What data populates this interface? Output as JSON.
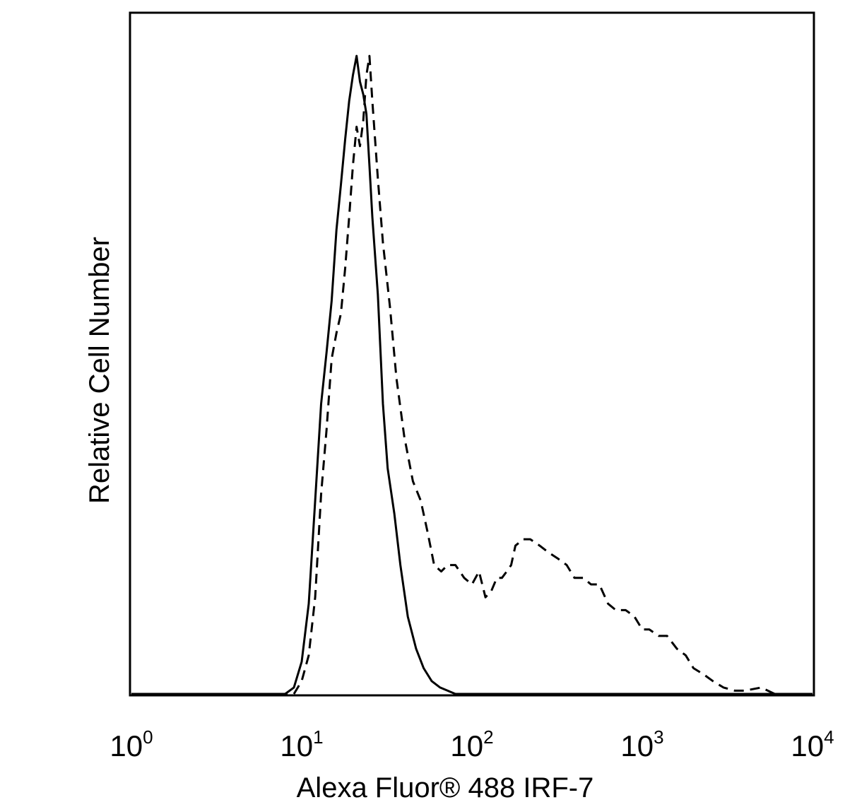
{
  "chart_data": {
    "type": "line",
    "xlabel": "Alexa Fluor® 488 IRF-7",
    "ylabel": "Relative Cell Number",
    "x_scale": "log",
    "xlim": [
      1,
      10000
    ],
    "ylim": [
      0,
      1
    ],
    "grid": false,
    "x_ticks": [
      {
        "base": "10",
        "exp": "0",
        "value": 1
      },
      {
        "base": "10",
        "exp": "1",
        "value": 10
      },
      {
        "base": "10",
        "exp": "2",
        "value": 100
      },
      {
        "base": "10",
        "exp": "3",
        "value": 1000
      },
      {
        "base": "10",
        "exp": "4",
        "value": 10000
      }
    ],
    "series": [
      {
        "style": "solid",
        "x": [
          1,
          8,
          9,
          10,
          11,
          12,
          13,
          14,
          15,
          16,
          17,
          18,
          19,
          20,
          21,
          22,
          23,
          24,
          25,
          26,
          28,
          30,
          32,
          35,
          38,
          42,
          47,
          52,
          58,
          65,
          72,
          80,
          10000
        ],
        "y": [
          0,
          0,
          0.01,
          0.05,
          0.14,
          0.3,
          0.45,
          0.53,
          0.61,
          0.72,
          0.79,
          0.86,
          0.92,
          0.96,
          0.99,
          0.95,
          0.93,
          0.9,
          0.82,
          0.74,
          0.62,
          0.45,
          0.35,
          0.28,
          0.2,
          0.12,
          0.07,
          0.04,
          0.02,
          0.01,
          0.005,
          0,
          0
        ]
      },
      {
        "style": "dashed",
        "x": [
          1,
          9,
          10,
          11,
          12,
          13,
          14,
          15,
          16,
          17,
          18,
          19,
          20,
          21,
          22,
          23,
          24,
          25,
          26,
          28,
          30,
          33,
          36,
          40,
          45,
          50,
          55,
          60,
          66,
          72,
          80,
          90,
          100,
          110,
          120,
          130,
          140,
          150,
          160,
          170,
          180,
          200,
          220,
          250,
          280,
          320,
          360,
          400,
          450,
          500,
          560,
          630,
          700,
          800,
          900,
          1000,
          1100,
          1250,
          1400,
          1600,
          1800,
          2000,
          2300,
          2600,
          3000,
          3500,
          4000,
          5000,
          6000,
          10000
        ],
        "y": [
          0,
          0,
          0.02,
          0.06,
          0.15,
          0.31,
          0.41,
          0.52,
          0.56,
          0.59,
          0.66,
          0.74,
          0.82,
          0.88,
          0.85,
          0.89,
          0.96,
          0.99,
          0.92,
          0.8,
          0.7,
          0.6,
          0.49,
          0.4,
          0.33,
          0.3,
          0.25,
          0.2,
          0.19,
          0.2,
          0.2,
          0.18,
          0.17,
          0.19,
          0.15,
          0.16,
          0.18,
          0.18,
          0.19,
          0.2,
          0.23,
          0.24,
          0.24,
          0.23,
          0.22,
          0.21,
          0.2,
          0.18,
          0.18,
          0.17,
          0.17,
          0.14,
          0.13,
          0.13,
          0.12,
          0.1,
          0.1,
          0.09,
          0.09,
          0.07,
          0.06,
          0.04,
          0.03,
          0.02,
          0.01,
          0.005,
          0.005,
          0.01,
          0,
          0
        ]
      }
    ]
  }
}
